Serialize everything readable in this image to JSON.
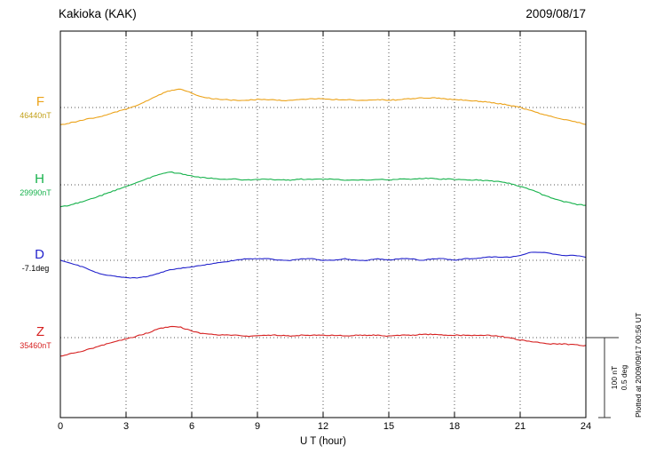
{
  "header": {
    "station": "Kakioka (KAK)",
    "date": "2009/08/17"
  },
  "axes": {
    "xlabel": "U T (hour)",
    "xticks": [
      0,
      3,
      6,
      9,
      12,
      15,
      18,
      21,
      24
    ],
    "x_min": 0,
    "x_max": 24
  },
  "scale_bar": {
    "label_nt": "100 nT",
    "label_deg": "0.5 deg"
  },
  "footer_note": "Plotted at 2009/09/17 00:56 UT",
  "chart_data": {
    "type": "line",
    "title": "Kakioka (KAK) magnetogram, 2009/08/17",
    "xlabel": "U T (hour)",
    "x_range": [
      0,
      24
    ],
    "x_step_hours": 0.5,
    "grid": "dotted",
    "legend_position": "left",
    "values_are_offsets_from_baseline": true,
    "scale_reference": {
      "nT_per_division": 100,
      "deg_per_division": 0.5
    },
    "series": [
      {
        "name": "F",
        "unit": "nT",
        "baseline_value": 46440,
        "baseline_label": "46440nT",
        "color": "#eca31a",
        "value_color": "#c2a018",
        "values": [
          -22,
          -19,
          -16,
          -13,
          -10,
          -6,
          -2,
          3,
          9,
          16,
          21,
          23,
          18,
          13,
          11,
          10,
          9,
          9,
          10,
          10,
          9,
          9,
          10,
          11,
          11,
          10,
          10,
          9,
          9,
          10,
          9,
          10,
          11,
          12,
          12,
          11,
          10,
          9,
          8,
          7,
          5,
          3,
          0,
          -4,
          -8,
          -12,
          -15,
          -18,
          -21
        ]
      },
      {
        "name": "H",
        "unit": "nT",
        "baseline_value": 29990,
        "baseline_label": "29990nT",
        "color": "#17b24c",
        "value_color": "#17b24c",
        "values": [
          -28,
          -25,
          -21,
          -17,
          -12,
          -7,
          -2,
          3,
          8,
          13,
          16,
          14,
          11,
          9,
          8,
          7,
          7,
          6,
          7,
          7,
          6,
          6,
          7,
          7,
          7,
          7,
          6,
          6,
          6,
          7,
          6,
          7,
          7,
          8,
          8,
          7,
          7,
          6,
          6,
          5,
          4,
          2,
          -2,
          -6,
          -12,
          -17,
          -21,
          -24,
          -26
        ]
      },
      {
        "name": "D",
        "unit": "deg",
        "baseline_value": -7.1,
        "baseline_label": "-7.1deg",
        "color": "#2222cc",
        "value_color": "#000000",
        "values": [
          0,
          -0.02,
          -0.04,
          -0.07,
          -0.09,
          -0.1,
          -0.11,
          -0.11,
          -0.1,
          -0.08,
          -0.06,
          -0.05,
          -0.04,
          -0.03,
          -0.02,
          -0.01,
          0,
          0.01,
          0.01,
          0.01,
          0,
          0,
          0.01,
          0.01,
          0,
          0,
          0.01,
          0,
          0,
          0.01,
          0,
          0.01,
          0.01,
          0,
          0.01,
          0.01,
          0,
          0.01,
          0.01,
          0.02,
          0.02,
          0.02,
          0.03,
          0.05,
          0.05,
          0.04,
          0.03,
          0.03,
          0.02
        ]
      },
      {
        "name": "Z",
        "unit": "nT",
        "baseline_value": 35460,
        "baseline_label": "35460nT",
        "color": "#d62020",
        "value_color": "#d62020",
        "values": [
          -23,
          -20,
          -17,
          -13,
          -9,
          -5,
          -2,
          2,
          6,
          11,
          14,
          13,
          8,
          5,
          4,
          3,
          3,
          2,
          2,
          3,
          3,
          2,
          3,
          3,
          3,
          3,
          2,
          3,
          3,
          3,
          2,
          3,
          3,
          4,
          4,
          3,
          3,
          3,
          3,
          3,
          2,
          0,
          -3,
          -5,
          -7,
          -8,
          -8,
          -9,
          -10
        ]
      }
    ]
  }
}
